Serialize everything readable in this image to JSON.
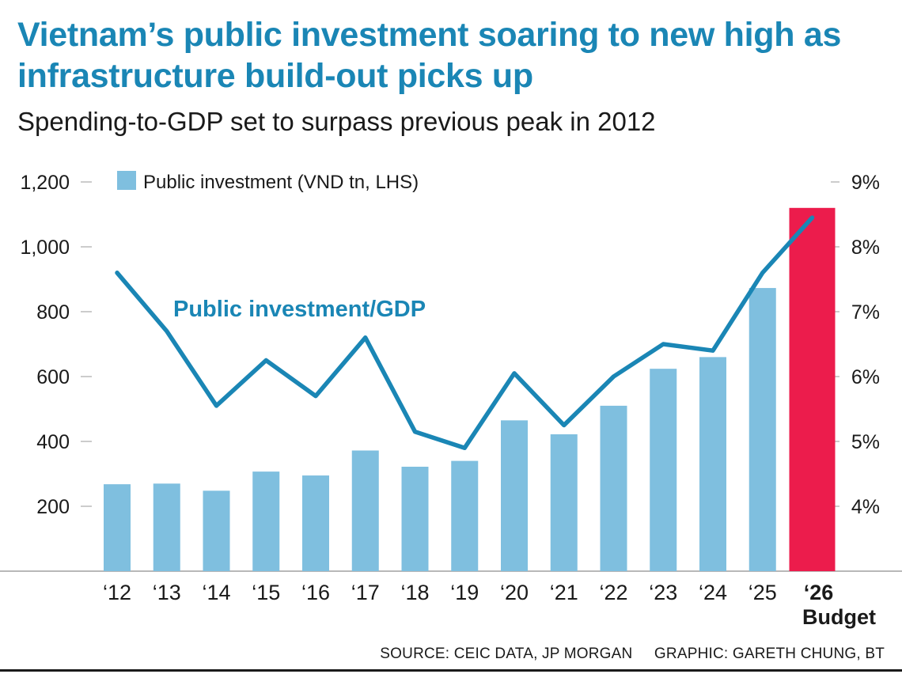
{
  "title": "Vietnam’s public investment soaring to new high as infrastructure build-out picks up",
  "subtitle": "Spending-to-GDP set to surpass previous peak in 2012",
  "source": "SOURCE: CEIC DATA, JP MORGAN",
  "credit": "GRAPHIC: GARETH CHUNG, BT",
  "colors": {
    "title": "#1a86b5",
    "bar": "#7fbfdf",
    "bar_highlight": "#ec1c4c",
    "line": "#1a86b5",
    "axis": "#9a9a9a"
  },
  "chart_data": {
    "type": "bar",
    "title": "Vietnam’s public investment soaring to new high as infrastructure build-out picks up",
    "categories": [
      "‘12",
      "‘13",
      "‘14",
      "‘15",
      "‘16",
      "‘17",
      "‘18",
      "‘19",
      "‘20",
      "‘21",
      "‘22",
      "‘23",
      "‘24",
      "‘25",
      "‘26"
    ],
    "category_notes": [
      "",
      "",
      "",
      "",
      "",
      "",
      "",
      "",
      "",
      "",
      "",
      "",
      "",
      "",
      "Budget"
    ],
    "highlight_index": 14,
    "series": [
      {
        "name": "Public investment (VND tn, LHS)",
        "type": "bar",
        "axis": "left",
        "values": [
          268,
          270,
          248,
          307,
          295,
          372,
          322,
          340,
          465,
          422,
          510,
          624,
          660,
          873,
          1120
        ]
      },
      {
        "name": "Public investment/GDP",
        "type": "line",
        "axis": "right",
        "values": [
          7.6,
          6.7,
          5.55,
          6.25,
          5.7,
          6.6,
          5.15,
          4.9,
          6.05,
          5.25,
          6.0,
          6.5,
          6.4,
          7.6,
          8.45
        ]
      }
    ],
    "y_left": {
      "ticks": [
        200,
        400,
        600,
        800,
        1000,
        1200
      ],
      "tick_labels": [
        "200",
        "400",
        "600",
        "800",
        "1,000",
        "1,200"
      ],
      "range": [
        0,
        1200
      ]
    },
    "y_right": {
      "ticks": [
        4,
        5,
        6,
        7,
        8,
        9
      ],
      "tick_labels": [
        "4%",
        "5%",
        "6%",
        "7%",
        "8%",
        "9%"
      ],
      "range": [
        3,
        9
      ]
    },
    "legend": "top-left",
    "line_label": "Public investment/GDP"
  }
}
